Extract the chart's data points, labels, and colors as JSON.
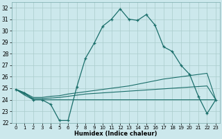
{
  "xlabel": "Humidex (Indice chaleur)",
  "background_color": "#cce8ec",
  "grid_color": "#aacccc",
  "line_color": "#1a6e6a",
  "xlim": [
    -0.5,
    23.5
  ],
  "ylim": [
    22,
    32.5
  ],
  "xticks": [
    0,
    1,
    2,
    3,
    4,
    5,
    6,
    7,
    8,
    9,
    10,
    11,
    12,
    13,
    14,
    15,
    16,
    17,
    18,
    19,
    20,
    21,
    22,
    23
  ],
  "yticks": [
    22,
    23,
    24,
    25,
    26,
    27,
    28,
    29,
    30,
    31,
    32
  ],
  "series": {
    "main": [
      24.9,
      24.6,
      24.0,
      24.0,
      23.6,
      22.2,
      22.2,
      25.1,
      27.6,
      28.9,
      30.4,
      31.0,
      31.9,
      31.0,
      30.9,
      31.4,
      30.5,
      28.6,
      28.2,
      27.0,
      26.2,
      24.3,
      22.8,
      24.0
    ],
    "line_top": [
      24.9,
      24.6,
      24.2,
      24.2,
      24.3,
      24.35,
      24.5,
      24.6,
      24.7,
      24.8,
      24.9,
      25.0,
      25.1,
      25.2,
      25.35,
      25.5,
      25.65,
      25.8,
      25.9,
      26.0,
      26.1,
      26.2,
      26.3,
      24.0
    ],
    "line_mid": [
      24.9,
      24.5,
      24.1,
      24.1,
      24.15,
      24.2,
      24.3,
      24.4,
      24.5,
      24.55,
      24.6,
      24.65,
      24.7,
      24.75,
      24.8,
      24.85,
      24.9,
      24.95,
      25.0,
      25.05,
      25.1,
      25.15,
      25.2,
      24.0
    ],
    "line_bot": [
      24.9,
      24.4,
      24.0,
      24.0,
      24.0,
      24.0,
      24.0,
      24.0,
      24.0,
      24.0,
      24.0,
      24.0,
      24.0,
      24.0,
      24.0,
      24.0,
      24.0,
      24.0,
      24.0,
      24.0,
      24.0,
      24.0,
      24.0,
      24.0
    ]
  }
}
